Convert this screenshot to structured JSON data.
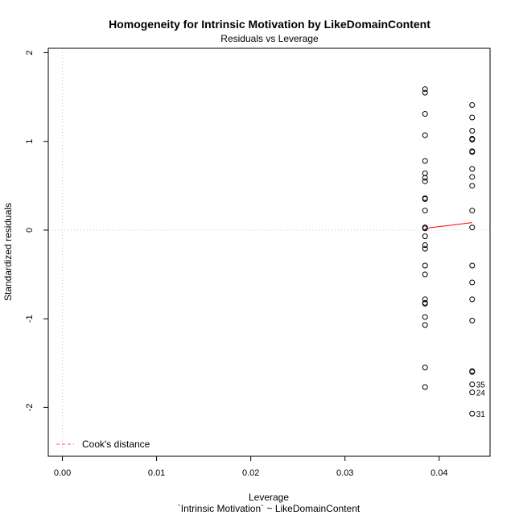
{
  "chart_data": {
    "type": "scatter",
    "title": "Homogeneity for Intrinsic Motivation by LikeDomainContent",
    "subtitle": "Residuals vs Leverage",
    "xlabel": "Leverage",
    "xlabel2": "`Intrinsic Motivation` ~ LikeDomainContent",
    "ylabel": "Standardized residuals",
    "xlim": [
      -0.0015,
      0.0454
    ],
    "ylim": [
      -2.55,
      2.05
    ],
    "x_ticks": [
      0.0,
      0.01,
      0.02,
      0.03,
      0.04
    ],
    "x_tick_labels": [
      "0.00",
      "0.01",
      "0.02",
      "0.03",
      "0.04"
    ],
    "y_ticks": [
      2,
      1,
      0,
      -1,
      -2
    ],
    "y_tick_labels": [
      "2",
      "1",
      "0",
      "-1",
      "-2"
    ],
    "grid": false,
    "reference_lines": {
      "horizontal_at": 0,
      "vertical_at": 0,
      "style": "dotted",
      "color": "#c8c8c8"
    },
    "series": [
      {
        "marker": "open-circle",
        "color": "#000000",
        "points": [
          {
            "x": 0.0385,
            "y": 1.59
          },
          {
            "x": 0.0385,
            "y": 1.55
          },
          {
            "x": 0.0385,
            "y": 1.31
          },
          {
            "x": 0.0385,
            "y": 1.07
          },
          {
            "x": 0.0385,
            "y": 0.78
          },
          {
            "x": 0.0385,
            "y": 0.64
          },
          {
            "x": 0.0385,
            "y": 0.59
          },
          {
            "x": 0.0385,
            "y": 0.55
          },
          {
            "x": 0.0385,
            "y": 0.36
          },
          {
            "x": 0.0385,
            "y": 0.35
          },
          {
            "x": 0.0385,
            "y": 0.22
          },
          {
            "x": 0.0385,
            "y": 0.03
          },
          {
            "x": 0.0385,
            "y": 0.02
          },
          {
            "x": 0.0385,
            "y": -0.07
          },
          {
            "x": 0.0385,
            "y": -0.17
          },
          {
            "x": 0.0385,
            "y": -0.21
          },
          {
            "x": 0.0385,
            "y": -0.4
          },
          {
            "x": 0.0385,
            "y": -0.5
          },
          {
            "x": 0.0385,
            "y": -0.78
          },
          {
            "x": 0.0385,
            "y": -0.82
          },
          {
            "x": 0.0385,
            "y": -0.83
          },
          {
            "x": 0.0385,
            "y": -0.98
          },
          {
            "x": 0.0385,
            "y": -1.07
          },
          {
            "x": 0.0385,
            "y": -1.55
          },
          {
            "x": 0.0385,
            "y": -1.77
          },
          {
            "x": 0.0435,
            "y": 1.41
          },
          {
            "x": 0.0435,
            "y": 1.27
          },
          {
            "x": 0.0435,
            "y": 1.12
          },
          {
            "x": 0.0435,
            "y": 1.03
          },
          {
            "x": 0.0435,
            "y": 1.02
          },
          {
            "x": 0.0435,
            "y": 0.89
          },
          {
            "x": 0.0435,
            "y": 0.88
          },
          {
            "x": 0.0435,
            "y": 0.69
          },
          {
            "x": 0.0435,
            "y": 0.6
          },
          {
            "x": 0.0435,
            "y": 0.5
          },
          {
            "x": 0.0435,
            "y": 0.22
          },
          {
            "x": 0.0435,
            "y": 0.03
          },
          {
            "x": 0.0435,
            "y": -0.4
          },
          {
            "x": 0.0435,
            "y": -0.59
          },
          {
            "x": 0.0435,
            "y": -0.78
          },
          {
            "x": 0.0435,
            "y": -1.02
          },
          {
            "x": 0.0435,
            "y": -1.59
          },
          {
            "x": 0.0435,
            "y": -1.6
          },
          {
            "x": 0.0435,
            "y": -1.74,
            "label": "35"
          },
          {
            "x": 0.0435,
            "y": -1.83,
            "label": "24"
          },
          {
            "x": 0.0435,
            "y": -2.07,
            "label": "31"
          }
        ]
      }
    ],
    "smooth_line": {
      "color": "#ff0000",
      "points": [
        [
          0.0385,
          0.02
        ],
        [
          0.0435,
          0.085
        ]
      ]
    },
    "legend": {
      "placement": "bottom-left",
      "label": "Cook's distance",
      "line_style": "dashed",
      "color": "#ff5a4f"
    }
  }
}
